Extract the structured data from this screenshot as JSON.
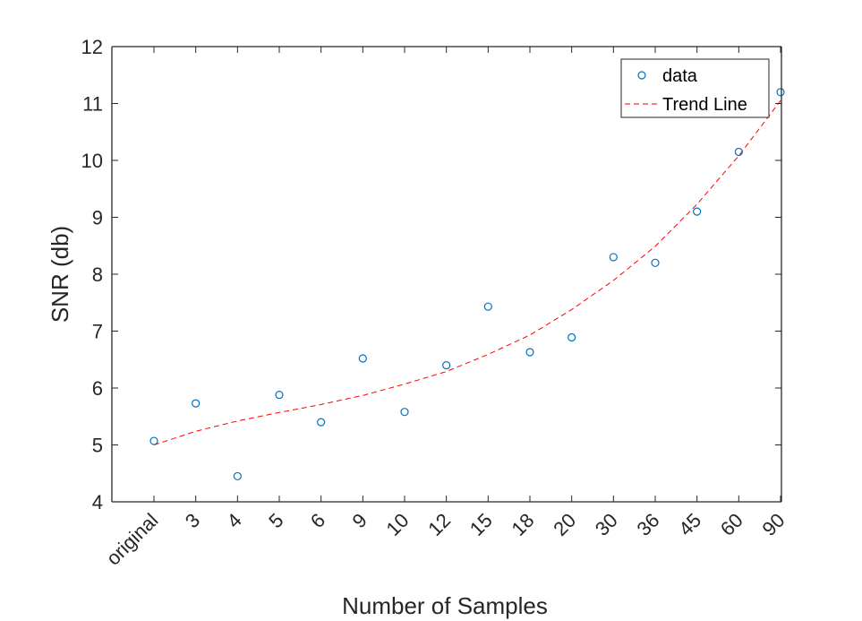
{
  "chart_data": {
    "type": "scatter",
    "title": "",
    "xlabel": "Number of Samples",
    "ylabel": "SNR (db)",
    "categories": [
      "original",
      "3",
      "4",
      "5",
      "6",
      "9",
      "10",
      "12",
      "15",
      "18",
      "20",
      "30",
      "36",
      "45",
      "60",
      "90"
    ],
    "ylim": [
      4,
      12
    ],
    "yticks": [
      "4",
      "5",
      "6",
      "7",
      "8",
      "9",
      "10",
      "11",
      "12"
    ],
    "grid": false,
    "legend_position": "top-right",
    "series": [
      {
        "name": "data",
        "style": "circle-markers",
        "color": "#0072BD",
        "values": [
          5.07,
          5.73,
          4.45,
          5.88,
          5.4,
          6.52,
          5.58,
          6.4,
          7.43,
          6.63,
          6.89,
          8.3,
          8.2,
          9.1,
          10.15,
          11.2
        ]
      },
      {
        "name": "Trend Line",
        "style": "dashed-line",
        "color": "#FF0000",
        "values": [
          5.0,
          5.24,
          5.42,
          5.57,
          5.71,
          5.87,
          6.07,
          6.29,
          6.59,
          6.93,
          7.38,
          7.89,
          8.49,
          9.23,
          10.08,
          11.05
        ]
      }
    ]
  }
}
